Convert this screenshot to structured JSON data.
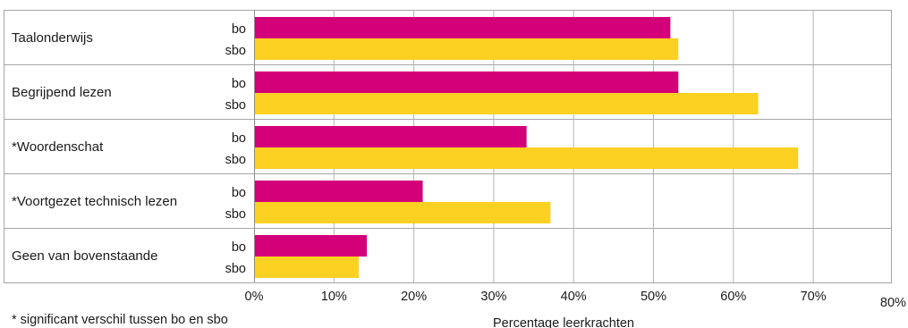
{
  "chart_data": {
    "type": "bar",
    "orientation": "horizontal",
    "categories": [
      "Taalonderwijs",
      "Begrijpend lezen",
      "*Woordenschat",
      "*Voortgezet technisch lezen",
      "Geen van bovenstaande"
    ],
    "series": [
      {
        "name": "bo",
        "color": "#d4007a",
        "values": [
          52,
          53,
          34,
          21,
          14
        ]
      },
      {
        "name": "sbo",
        "color": "#fcd122",
        "values": [
          53,
          63,
          68,
          37,
          13
        ]
      }
    ],
    "xlim": [
      0,
      80
    ],
    "xticks": [
      "0%",
      "10%",
      "20%",
      "30%",
      "40%",
      "50%",
      "60%",
      "70%",
      "80%"
    ],
    "xlabel": "Percentage leerkrachten",
    "ylabel": "",
    "footnote": "* significant verschil tussen bo en sbo",
    "grid": true
  }
}
